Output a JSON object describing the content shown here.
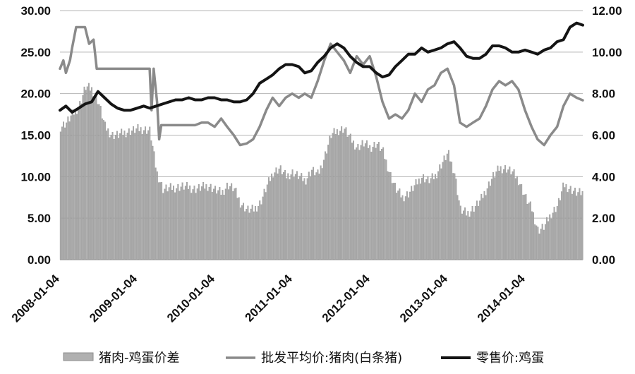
{
  "chart_data": {
    "type": "bar+line",
    "title": "",
    "x_ticks": [
      "2008-01-04",
      "2009-01-04",
      "2010-01-04",
      "2011-01-04",
      "2012-01-04",
      "2013-01-04",
      "2014-01-04"
    ],
    "x_range": [
      "2008-01-04",
      "2014-09-30"
    ],
    "y_left": {
      "range": [
        0,
        30
      ],
      "ticks": [
        "0.00",
        "5.00",
        "10.00",
        "15.00",
        "20.00",
        "25.00",
        "30.00"
      ]
    },
    "y_right": {
      "range": [
        0,
        12
      ],
      "ticks": [
        "0.00",
        "2.00",
        "4.00",
        "6.00",
        "8.00",
        "10.00",
        "12.00"
      ]
    },
    "grid": true,
    "legend_position": "bottom",
    "series": [
      {
        "name": "猪肉-鸡蛋价差",
        "kind": "bar",
        "axis": "left",
        "color": "#a8a8a8",
        "points": [
          [
            "2008-01-04",
            16.0
          ],
          [
            "2008-02-01",
            16.5
          ],
          [
            "2008-03-01",
            17.5
          ],
          [
            "2008-04-01",
            18.5
          ],
          [
            "2008-05-01",
            20.8
          ],
          [
            "2008-06-01",
            20.5
          ],
          [
            "2008-07-01",
            19.0
          ],
          [
            "2008-08-01",
            16.0
          ],
          [
            "2008-09-01",
            15.0
          ],
          [
            "2008-10-01",
            15.0
          ],
          [
            "2008-11-01",
            15.3
          ],
          [
            "2008-12-01",
            15.5
          ],
          [
            "2009-01-01",
            15.7
          ],
          [
            "2009-02-01",
            15.7
          ],
          [
            "2009-03-01",
            15.5
          ],
          [
            "2009-04-01",
            10.5
          ],
          [
            "2009-05-01",
            8.5
          ],
          [
            "2009-06-01",
            8.6
          ],
          [
            "2009-07-01",
            8.7
          ],
          [
            "2009-08-01",
            8.8
          ],
          [
            "2009-09-01",
            8.7
          ],
          [
            "2009-10-01",
            8.5
          ],
          [
            "2009-11-01",
            8.7
          ],
          [
            "2009-12-01",
            8.9
          ],
          [
            "2010-01-01",
            8.4
          ],
          [
            "2010-02-01",
            8.0
          ],
          [
            "2010-03-01",
            9.0
          ],
          [
            "2010-04-01",
            8.5
          ],
          [
            "2010-05-01",
            6.8
          ],
          [
            "2010-06-01",
            6.0
          ],
          [
            "2010-07-01",
            6.0
          ],
          [
            "2010-08-01",
            6.8
          ],
          [
            "2010-09-01",
            8.8
          ],
          [
            "2010-10-01",
            10.5
          ],
          [
            "2010-11-01",
            11.0
          ],
          [
            "2010-12-01",
            10.0
          ],
          [
            "2011-01-01",
            10.5
          ],
          [
            "2011-02-01",
            10.0
          ],
          [
            "2011-03-01",
            9.5
          ],
          [
            "2011-04-01",
            10.8
          ],
          [
            "2011-05-01",
            10.2
          ],
          [
            "2011-06-01",
            12.5
          ],
          [
            "2011-07-01",
            15.0
          ],
          [
            "2011-08-01",
            15.5
          ],
          [
            "2011-09-01",
            15.8
          ],
          [
            "2011-10-01",
            14.5
          ],
          [
            "2011-11-01",
            13.5
          ],
          [
            "2011-12-01",
            14.0
          ],
          [
            "2012-01-01",
            13.5
          ],
          [
            "2012-02-01",
            14.0
          ],
          [
            "2012-03-01",
            13.0
          ],
          [
            "2012-04-01",
            10.5
          ],
          [
            "2012-05-01",
            8.5
          ],
          [
            "2012-06-01",
            7.5
          ],
          [
            "2012-07-01",
            8.0
          ],
          [
            "2012-08-01",
            9.0
          ],
          [
            "2012-09-01",
            10.0
          ],
          [
            "2012-10-01",
            9.5
          ],
          [
            "2012-11-01",
            10.0
          ],
          [
            "2012-12-01",
            11.5
          ],
          [
            "2013-01-01",
            12.8
          ],
          [
            "2013-02-01",
            10.5
          ],
          [
            "2013-03-01",
            6.0
          ],
          [
            "2013-04-01",
            5.5
          ],
          [
            "2013-05-01",
            6.2
          ],
          [
            "2013-06-01",
            7.0
          ],
          [
            "2013-07-01",
            8.5
          ],
          [
            "2013-08-01",
            10.0
          ],
          [
            "2013-09-01",
            11.0
          ],
          [
            "2013-10-01",
            11.0
          ],
          [
            "2013-11-01",
            10.5
          ],
          [
            "2013-12-01",
            9.5
          ],
          [
            "2014-01-01",
            7.5
          ],
          [
            "2014-02-01",
            6.0
          ],
          [
            "2014-03-01",
            3.5
          ],
          [
            "2014-04-01",
            4.0
          ],
          [
            "2014-05-01",
            5.5
          ],
          [
            "2014-06-01",
            6.5
          ],
          [
            "2014-07-01",
            9.0
          ],
          [
            "2014-08-01",
            8.5
          ],
          [
            "2014-09-01",
            8.0
          ]
        ]
      },
      {
        "name": "批发平均价:猪肉(白条猪)",
        "kind": "line",
        "axis": "left",
        "color": "#8a8a8a",
        "points": [
          [
            "2008-01-04",
            23.0
          ],
          [
            "2008-01-20",
            24.0
          ],
          [
            "2008-02-01",
            22.5
          ],
          [
            "2008-02-20",
            24.0
          ],
          [
            "2008-03-01",
            25.5
          ],
          [
            "2008-03-20",
            28.0
          ],
          [
            "2008-05-01",
            28.0
          ],
          [
            "2008-05-20",
            26.0
          ],
          [
            "2008-06-10",
            26.5
          ],
          [
            "2008-06-25",
            23.0
          ],
          [
            "2008-07-10",
            23.0
          ],
          [
            "2008-07-20",
            23.0
          ],
          [
            "2009-03-01",
            23.0
          ],
          [
            "2009-03-10",
            18.0
          ],
          [
            "2009-03-20",
            23.0
          ],
          [
            "2009-04-05",
            19.0
          ],
          [
            "2009-04-15",
            14.5
          ],
          [
            "2009-04-25",
            16.2
          ],
          [
            "2009-05-01",
            16.2
          ],
          [
            "2009-10-01",
            16.2
          ],
          [
            "2009-11-01",
            16.5
          ],
          [
            "2009-12-01",
            16.5
          ],
          [
            "2010-01-01",
            16.0
          ],
          [
            "2010-02-01",
            17.0
          ],
          [
            "2010-03-01",
            16.0
          ],
          [
            "2010-04-01",
            15.0
          ],
          [
            "2010-05-01",
            13.8
          ],
          [
            "2010-06-01",
            14.0
          ],
          [
            "2010-07-01",
            14.5
          ],
          [
            "2010-08-01",
            16.0
          ],
          [
            "2010-09-01",
            18.0
          ],
          [
            "2010-10-01",
            19.5
          ],
          [
            "2010-11-01",
            18.5
          ],
          [
            "2010-12-01",
            19.5
          ],
          [
            "2011-01-01",
            20.0
          ],
          [
            "2011-02-01",
            19.5
          ],
          [
            "2011-03-01",
            20.0
          ],
          [
            "2011-04-01",
            19.5
          ],
          [
            "2011-05-01",
            21.5
          ],
          [
            "2011-06-01",
            24.0
          ],
          [
            "2011-07-01",
            26.0
          ],
          [
            "2011-08-01",
            25.0
          ],
          [
            "2011-09-01",
            24.0
          ],
          [
            "2011-10-01",
            22.5
          ],
          [
            "2011-11-01",
            24.5
          ],
          [
            "2011-12-01",
            23.5
          ],
          [
            "2012-01-01",
            24.5
          ],
          [
            "2012-02-01",
            22.0
          ],
          [
            "2012-03-01",
            19.0
          ],
          [
            "2012-04-01",
            17.0
          ],
          [
            "2012-05-01",
            17.5
          ],
          [
            "2012-06-01",
            17.0
          ],
          [
            "2012-07-01",
            18.0
          ],
          [
            "2012-08-01",
            20.0
          ],
          [
            "2012-09-01",
            19.0
          ],
          [
            "2012-10-01",
            20.5
          ],
          [
            "2012-11-01",
            21.0
          ],
          [
            "2012-12-01",
            22.5
          ],
          [
            "2013-01-01",
            23.0
          ],
          [
            "2013-02-01",
            21.0
          ],
          [
            "2013-03-01",
            16.5
          ],
          [
            "2013-04-01",
            16.0
          ],
          [
            "2013-05-01",
            16.5
          ],
          [
            "2013-06-01",
            17.0
          ],
          [
            "2013-07-01",
            18.5
          ],
          [
            "2013-08-01",
            20.5
          ],
          [
            "2013-09-01",
            21.5
          ],
          [
            "2013-10-01",
            21.0
          ],
          [
            "2013-11-01",
            21.5
          ],
          [
            "2013-12-01",
            20.5
          ],
          [
            "2014-01-01",
            18.0
          ],
          [
            "2014-02-01",
            16.0
          ],
          [
            "2014-03-01",
            14.5
          ],
          [
            "2014-04-01",
            13.8
          ],
          [
            "2014-05-01",
            15.0
          ],
          [
            "2014-06-01",
            16.0
          ],
          [
            "2014-07-01",
            18.5
          ],
          [
            "2014-08-01",
            20.0
          ],
          [
            "2014-09-01",
            19.5
          ],
          [
            "2014-09-30",
            19.2
          ]
        ]
      },
      {
        "name": "零售价:鸡蛋",
        "kind": "line",
        "axis": "right",
        "color": "#141414",
        "points": [
          [
            "2008-01-04",
            7.2
          ],
          [
            "2008-02-01",
            7.4
          ],
          [
            "2008-03-01",
            7.1
          ],
          [
            "2008-04-01",
            7.3
          ],
          [
            "2008-05-01",
            7.5
          ],
          [
            "2008-06-01",
            7.6
          ],
          [
            "2008-07-01",
            8.1
          ],
          [
            "2008-08-01",
            7.8
          ],
          [
            "2008-09-01",
            7.5
          ],
          [
            "2008-10-01",
            7.3
          ],
          [
            "2008-11-01",
            7.2
          ],
          [
            "2008-12-01",
            7.2
          ],
          [
            "2009-01-01",
            7.3
          ],
          [
            "2009-02-01",
            7.4
          ],
          [
            "2009-03-01",
            7.3
          ],
          [
            "2009-04-01",
            7.4
          ],
          [
            "2009-05-01",
            7.5
          ],
          [
            "2009-06-01",
            7.6
          ],
          [
            "2009-07-01",
            7.7
          ],
          [
            "2009-08-01",
            7.7
          ],
          [
            "2009-09-01",
            7.8
          ],
          [
            "2009-10-01",
            7.7
          ],
          [
            "2009-11-01",
            7.7
          ],
          [
            "2009-12-01",
            7.8
          ],
          [
            "2010-01-01",
            7.8
          ],
          [
            "2010-02-01",
            7.7
          ],
          [
            "2010-03-01",
            7.7
          ],
          [
            "2010-04-01",
            7.6
          ],
          [
            "2010-05-01",
            7.6
          ],
          [
            "2010-06-01",
            7.7
          ],
          [
            "2010-07-01",
            8.0
          ],
          [
            "2010-08-01",
            8.5
          ],
          [
            "2010-09-01",
            8.7
          ],
          [
            "2010-10-01",
            8.9
          ],
          [
            "2010-11-01",
            9.2
          ],
          [
            "2010-12-01",
            9.4
          ],
          [
            "2011-01-01",
            9.4
          ],
          [
            "2011-02-01",
            9.3
          ],
          [
            "2011-03-01",
            9.0
          ],
          [
            "2011-04-01",
            9.1
          ],
          [
            "2011-05-01",
            9.5
          ],
          [
            "2011-06-01",
            9.8
          ],
          [
            "2011-07-01",
            10.2
          ],
          [
            "2011-08-01",
            10.4
          ],
          [
            "2011-09-01",
            10.2
          ],
          [
            "2011-10-01",
            9.8
          ],
          [
            "2011-11-01",
            9.5
          ],
          [
            "2011-12-01",
            9.3
          ],
          [
            "2012-01-01",
            9.3
          ],
          [
            "2012-02-01",
            9.0
          ],
          [
            "2012-03-01",
            8.8
          ],
          [
            "2012-04-01",
            8.9
          ],
          [
            "2012-05-01",
            9.3
          ],
          [
            "2012-06-01",
            9.6
          ],
          [
            "2012-07-01",
            9.9
          ],
          [
            "2012-08-01",
            9.9
          ],
          [
            "2012-09-01",
            10.2
          ],
          [
            "2012-10-01",
            10.0
          ],
          [
            "2012-11-01",
            10.1
          ],
          [
            "2012-12-01",
            10.2
          ],
          [
            "2013-01-01",
            10.4
          ],
          [
            "2013-02-01",
            10.5
          ],
          [
            "2013-03-01",
            10.2
          ],
          [
            "2013-04-01",
            9.8
          ],
          [
            "2013-05-01",
            9.7
          ],
          [
            "2013-06-01",
            9.7
          ],
          [
            "2013-07-01",
            9.9
          ],
          [
            "2013-08-01",
            10.3
          ],
          [
            "2013-09-01",
            10.3
          ],
          [
            "2013-10-01",
            10.2
          ],
          [
            "2013-11-01",
            10.0
          ],
          [
            "2013-12-01",
            10.0
          ],
          [
            "2014-01-01",
            10.1
          ],
          [
            "2014-02-01",
            10.0
          ],
          [
            "2014-03-01",
            9.9
          ],
          [
            "2014-04-01",
            10.1
          ],
          [
            "2014-05-01",
            10.2
          ],
          [
            "2014-06-01",
            10.5
          ],
          [
            "2014-07-01",
            10.6
          ],
          [
            "2014-08-01",
            11.2
          ],
          [
            "2014-09-01",
            11.4
          ],
          [
            "2014-09-30",
            11.3
          ]
        ]
      }
    ]
  }
}
